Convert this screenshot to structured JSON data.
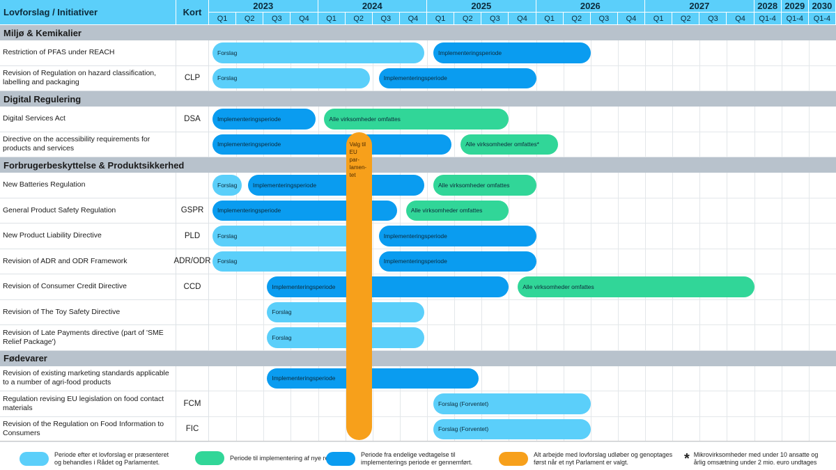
{
  "header": {
    "title": "Lovforslag / Initiativer",
    "kort": "Kort",
    "years": [
      {
        "label": "2023",
        "quarters": [
          "Q1",
          "Q2",
          "Q3",
          "Q4"
        ]
      },
      {
        "label": "2024",
        "quarters": [
          "Q1",
          "Q2",
          "Q3",
          "Q4"
        ]
      },
      {
        "label": "2025",
        "quarters": [
          "Q1",
          "Q2",
          "Q3",
          "Q4"
        ]
      },
      {
        "label": "2026",
        "quarters": [
          "Q1",
          "Q2",
          "Q3",
          "Q4"
        ]
      },
      {
        "label": "2027",
        "quarters": [
          "Q1",
          "Q2",
          "Q3",
          "Q4"
        ]
      },
      {
        "label": "2028",
        "quarters": [
          "Q1-4"
        ]
      },
      {
        "label": "2029",
        "quarters": [
          "Q1-4"
        ]
      },
      {
        "label": "2030",
        "quarters": [
          "Q1-4"
        ]
      }
    ]
  },
  "colors": {
    "forslag": "#5bcffa",
    "alle": "#31d698",
    "impl": "#0a9cf0",
    "valg": "#f7a01b",
    "section": "#b8c2cc"
  },
  "rows": [
    {
      "type": "section",
      "label": "Miljø & Kemikalier"
    },
    {
      "type": "item",
      "label": "Restriction of PFAS under REACH",
      "kort": "",
      "bars": [
        {
          "kind": "forslag",
          "label": "Forslag",
          "start": 0,
          "end": 7.9
        },
        {
          "kind": "impl",
          "label": "Implementeringsperiode",
          "start": 8.1,
          "end": 14
        }
      ]
    },
    {
      "type": "item",
      "label": "Revision of Regulation on hazard classification, labelling and packaging",
      "kort": "CLP",
      "bars": [
        {
          "kind": "forslag",
          "label": "Forslag",
          "start": 0,
          "end": 5.9
        },
        {
          "kind": "impl",
          "label": "Implementeringsperiode",
          "start": 6.1,
          "end": 12
        }
      ]
    },
    {
      "type": "section",
      "label": "Digital Regulering"
    },
    {
      "type": "item",
      "label": "Digital Services Act",
      "kort": "DSA",
      "bars": [
        {
          "kind": "impl",
          "label": "Implementeringsperiode",
          "start": 0,
          "end": 3.9
        },
        {
          "kind": "alle",
          "label": "Alle virksomheder omfattes",
          "start": 4.1,
          "end": 11
        }
      ]
    },
    {
      "type": "item",
      "label": "Directive on the accessibility requirements for products and services",
      "kort": "",
      "bars": [
        {
          "kind": "impl",
          "label": "Implementeringsperiode",
          "start": 0,
          "end": 8.9
        },
        {
          "kind": "alle",
          "label": "Alle virksomheder omfattes*",
          "start": 9.1,
          "end": 12.8
        }
      ]
    },
    {
      "type": "section",
      "label": "Forbrugerbeskyttelse & Produktsikkerhed"
    },
    {
      "type": "item",
      "label": "New Batteries Regulation",
      "kort": "",
      "bars": [
        {
          "kind": "forslag",
          "label": "Forslag",
          "start": 0,
          "end": 1.2
        },
        {
          "kind": "impl",
          "label": "Implementeringsperiode",
          "start": 1.3,
          "end": 7.9
        },
        {
          "kind": "alle",
          "label": "Alle virksomheder omfattes",
          "start": 8.1,
          "end": 12
        }
      ]
    },
    {
      "type": "item",
      "label": "General Product Safety Regulation",
      "kort": "GSPR",
      "bars": [
        {
          "kind": "impl",
          "label": "Implementeringsperiode",
          "start": 0,
          "end": 6.9
        },
        {
          "kind": "alle",
          "label": "Alle virksomheder omfattes",
          "start": 7.1,
          "end": 11
        }
      ]
    },
    {
      "type": "item",
      "label": "New Product Liability Directive",
      "kort": "PLD",
      "bars": [
        {
          "kind": "forslag",
          "label": "Forslag",
          "start": 0,
          "end": 5.9
        },
        {
          "kind": "impl",
          "label": "Implementeringsperiode",
          "start": 6.1,
          "end": 12
        }
      ]
    },
    {
      "type": "item",
      "label": "Revision of ADR and ODR Framework",
      "kort": "ADR/ODR",
      "bars": [
        {
          "kind": "forslag",
          "label": "Forslag",
          "start": 0,
          "end": 5.9
        },
        {
          "kind": "impl",
          "label": "Implementeringsperiode",
          "start": 6.1,
          "end": 12
        }
      ]
    },
    {
      "type": "item",
      "label": "Revision of Consumer Credit Directive",
      "kort": "CCD",
      "bars": [
        {
          "kind": "impl",
          "label": "Implementeringsperiode",
          "start": 2,
          "end": 11
        },
        {
          "kind": "alle",
          "label": "Alle virksomheder omfattes",
          "start": 11.2,
          "end": 20
        }
      ]
    },
    {
      "type": "item",
      "label": "Revision of The Toy Safety Directive",
      "kort": "",
      "bars": [
        {
          "kind": "forslag",
          "label": "Forslag",
          "start": 2,
          "end": 7.9
        }
      ]
    },
    {
      "type": "item",
      "label": "Revision of Late Payments directive (part of 'SME Relief Package')",
      "kort": "",
      "bars": [
        {
          "kind": "forslag",
          "label": "Forslag",
          "start": 2,
          "end": 7.9
        }
      ]
    },
    {
      "type": "section",
      "label": "Fødevarer"
    },
    {
      "type": "item",
      "label": "Revision of existing marketing standards applicable to a number of agri-food products",
      "kort": "",
      "bars": [
        {
          "kind": "impl",
          "label": "Implementeringsperiode",
          "start": 2,
          "end": 9.9
        }
      ]
    },
    {
      "type": "item",
      "label": "Regulation revising EU legislation on food contact materials",
      "kort": "FCM",
      "bars": [
        {
          "kind": "forslag",
          "label": "Forslag (Forventet)",
          "start": 8.1,
          "end": 14
        }
      ]
    },
    {
      "type": "item",
      "label": "Revision of the Regulation on Food Information to Consumers",
      "kort": "FIC",
      "bars": [
        {
          "kind": "forslag",
          "label": "Forslag (Forventet)",
          "start": 8.1,
          "end": 14
        }
      ]
    }
  ],
  "valg": {
    "label": "Valg til EU par-lamen-tet",
    "quarter": 5
  },
  "legend": [
    {
      "kind": "forslag",
      "text": "Periode efter et lovforslag er præsenteret og behandles i Rådet og Parlamentet."
    },
    {
      "kind": "alle",
      "text": "Periode til implementering af nye regler."
    },
    {
      "kind": "impl",
      "text": "Periode fra endelige vedtagelse til implementerings periode er gennemført."
    },
    {
      "kind": "valg",
      "text": "Alt arbejde med lovforslag udløber og genoptages først når et nyt Parlament er valgt."
    },
    {
      "kind": "star",
      "symbol": "*",
      "text": "Mikrovirksomheder med under 10 ansatte og årlig omsætning under 2 mio. euro undtages"
    }
  ]
}
